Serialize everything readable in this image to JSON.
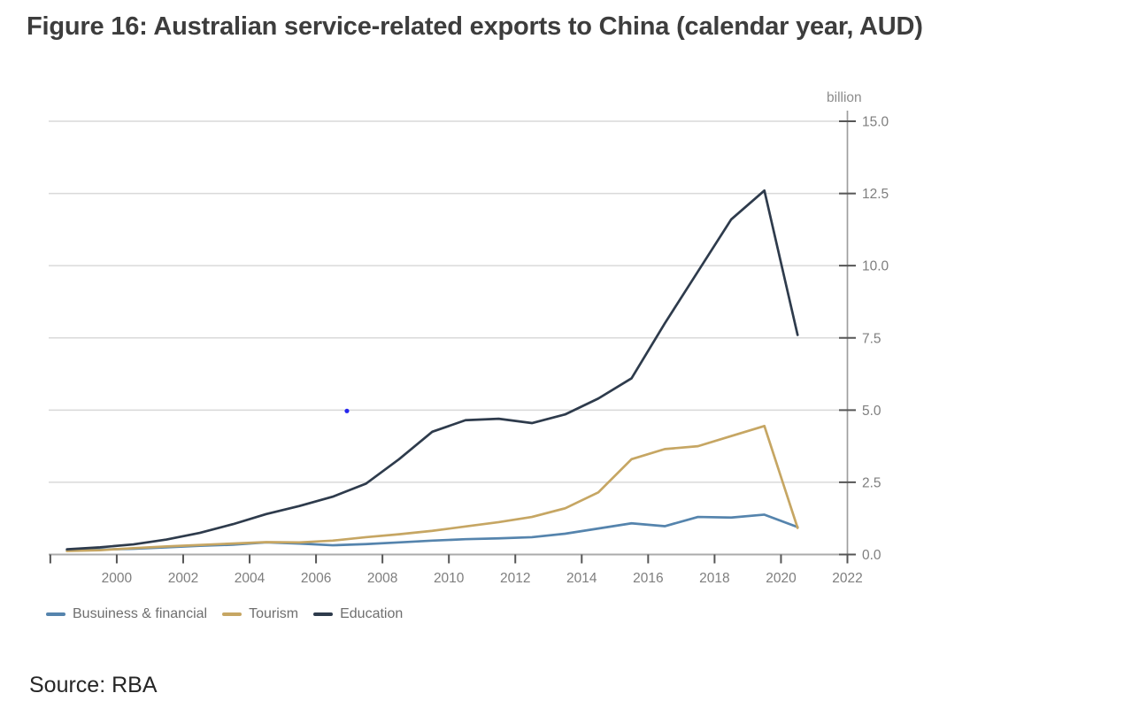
{
  "page": {
    "title": "Figure 16: Australian service-related exports to China (calendar year, AUD)",
    "source_note": "Source: RBA"
  },
  "chart_data": {
    "type": "line",
    "title": "Figure 16: Australian service-related exports to China (calendar year, AUD)",
    "unit_label": "billion",
    "x_years": [
      1998,
      1999,
      2000,
      2001,
      2002,
      2003,
      2004,
      2005,
      2006,
      2007,
      2008,
      2009,
      2010,
      2011,
      2012,
      2013,
      2014,
      2015,
      2016,
      2017,
      2018,
      2019,
      2020
    ],
    "plot_x_offset_years": 0.5,
    "series": [
      {
        "name": "Busuiness & financial",
        "color": "#5584ad",
        "values": [
          0.15,
          0.17,
          0.2,
          0.25,
          0.3,
          0.34,
          0.42,
          0.38,
          0.32,
          0.36,
          0.42,
          0.48,
          0.53,
          0.56,
          0.6,
          0.72,
          0.9,
          1.08,
          0.98,
          1.3,
          1.28,
          1.38,
          0.95
        ]
      },
      {
        "name": "Tourism",
        "color": "#c6a663",
        "values": [
          0.12,
          0.15,
          0.22,
          0.28,
          0.33,
          0.38,
          0.43,
          0.42,
          0.48,
          0.6,
          0.7,
          0.82,
          0.97,
          1.12,
          1.3,
          1.6,
          2.15,
          3.3,
          3.65,
          3.75,
          4.1,
          4.45,
          0.92
        ]
      },
      {
        "name": "Education",
        "color": "#2e3b4c",
        "values": [
          0.18,
          0.25,
          0.35,
          0.52,
          0.75,
          1.05,
          1.4,
          1.68,
          2.0,
          2.45,
          3.3,
          4.25,
          4.65,
          4.7,
          4.55,
          4.85,
          5.4,
          6.1,
          8.0,
          9.8,
          11.6,
          12.6,
          7.6
        ]
      }
    ],
    "xticks": [
      {
        "year": 1998,
        "label": ""
      },
      {
        "year": 2000,
        "label": "2000"
      },
      {
        "year": 2002,
        "label": "2002"
      },
      {
        "year": 2004,
        "label": "2004"
      },
      {
        "year": 2006,
        "label": "2006"
      },
      {
        "year": 2008,
        "label": "2008"
      },
      {
        "year": 2010,
        "label": "2010"
      },
      {
        "year": 2012,
        "label": "2012"
      },
      {
        "year": 2014,
        "label": "2014"
      },
      {
        "year": 2016,
        "label": "2016"
      },
      {
        "year": 2018,
        "label": "2018"
      },
      {
        "year": 2020,
        "label": "2020"
      },
      {
        "year": 2022,
        "label": "2022"
      }
    ],
    "yticks": {
      "values": [
        0,
        2.5,
        5,
        7.5,
        10,
        12.5,
        15
      ],
      "labels": [
        "0.0",
        "2.5",
        "5.0",
        "7.5",
        "10.0",
        "12.5",
        "15.0"
      ]
    },
    "xlim": [
      1997.95,
      2022
    ],
    "ylim": [
      0,
      15
    ],
    "grid": "horizontal",
    "y_axis_side": "right",
    "legend_position": "bottom-left",
    "artifact_dot": {
      "x_year": 2006.93,
      "value": 4.97,
      "color": "#2626ee"
    }
  }
}
